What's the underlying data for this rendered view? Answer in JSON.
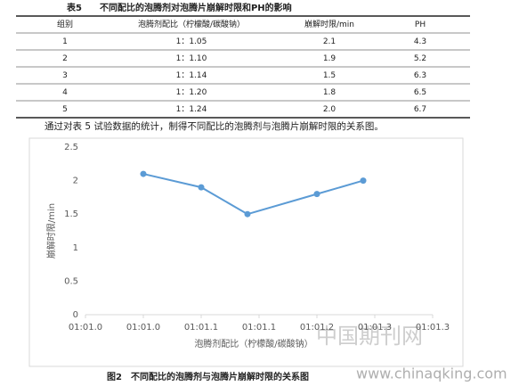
{
  "table": {
    "caption": "表5　　不同配比的泡腾剂对泡腾片崩解时限和PH的影响",
    "header": [
      "组别",
      "泡腾剂配比（柠檬酸/碳酸钠）",
      "崩解时限/min",
      "PH"
    ],
    "rows": [
      [
        "1",
        "1：1.05",
        "2.1",
        "4.3"
      ],
      [
        "2",
        "1：1.10",
        "1.9",
        "5.2"
      ],
      [
        "3",
        "1：1.14",
        "1.5",
        "6.3"
      ],
      [
        "4",
        "1：1.20",
        "1.8",
        "6.5"
      ],
      [
        "5",
        "1：1.24",
        "2.0",
        "6.7"
      ]
    ]
  },
  "paragraph": "通过对表 5 试验数据的统计，制得不同配比的泡腾剂与泡腾片崩解时限的关系图。",
  "chart_data": {
    "type": "line",
    "x_label": "泡腾剂配比（柠檬酸/碳酸钠）",
    "y_label": "崩解时限/min",
    "x": [
      1.05,
      1.1,
      1.14,
      1.2,
      1.24
    ],
    "values": [
      2.1,
      1.9,
      1.5,
      1.8,
      2.0
    ],
    "color": "#5b9bd5",
    "xlim": [
      1.0,
      1.3
    ],
    "xticks": [
      {
        "value": 1.0,
        "label": "01:01.0"
      },
      {
        "value": 1.05,
        "label": "01:01.0"
      },
      {
        "value": 1.1,
        "label": "01:01.1"
      },
      {
        "value": 1.15,
        "label": "01:01.1"
      },
      {
        "value": 1.2,
        "label": "01:01.2"
      },
      {
        "value": 1.25,
        "label": "01:01.3"
      },
      {
        "value": 1.3,
        "label": "01:01.3"
      }
    ],
    "ylim": [
      0,
      2.5
    ],
    "yticks": [
      0,
      0.5,
      1,
      1.5,
      2,
      2.5
    ]
  },
  "figure_caption": "图2　不同配比的泡腾剂与泡腾片崩解时限的关系图",
  "watermark": [
    "中国期刊网",
    "www.chinaqking.com"
  ]
}
